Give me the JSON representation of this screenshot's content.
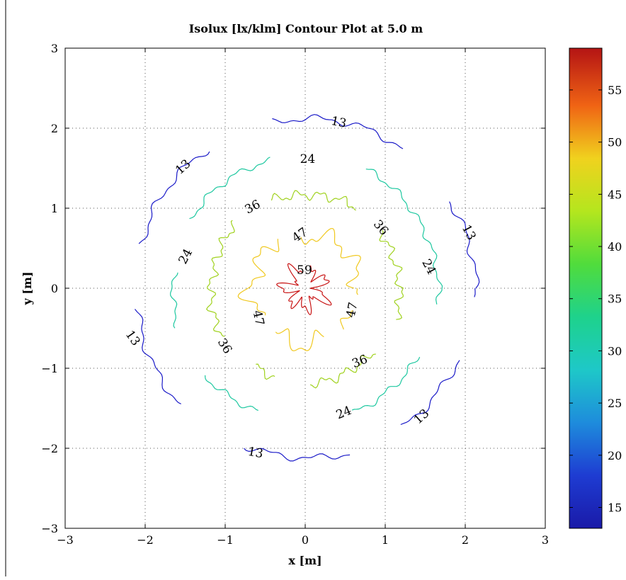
{
  "chart_data": {
    "type": "contour",
    "title": "Isolux [lx/klm] Contour Plot at 5.0 m",
    "xlabel": "x [m]",
    "ylabel": "y [m]",
    "xlim": [
      -3,
      3
    ],
    "ylim": [
      -3,
      3
    ],
    "xticks": [
      -3,
      -2,
      -1,
      0,
      1,
      2,
      3
    ],
    "yticks": [
      -3,
      -2,
      -1,
      0,
      1,
      2,
      3
    ],
    "xtick_labels": [
      "−3",
      "−2",
      "−1",
      "0",
      "1",
      "2",
      "3"
    ],
    "ytick_labels": [
      "−3",
      "−2",
      "−1",
      "0",
      "1",
      "2",
      "3"
    ],
    "grid": true,
    "colormap": "jet",
    "colorbar": {
      "range": [
        13,
        59
      ],
      "ticks": [
        15,
        20,
        25,
        30,
        35,
        40,
        45,
        50,
        55
      ],
      "tick_labels": [
        "15",
        "20",
        "25",
        "30",
        "35",
        "40",
        "45",
        "50",
        "55"
      ],
      "location": "right"
    },
    "levels": [
      {
        "value": 13,
        "label": "13",
        "color": "#1a1ac8",
        "radius": 2.12,
        "amp": 0.035,
        "freq": 22,
        "gaps": [
          [
            32,
            54
          ],
          [
            102,
            124
          ],
          [
            166,
            186
          ],
          [
            224,
            248
          ],
          [
            286,
            304
          ],
          [
            336,
            356
          ]
        ]
      },
      {
        "value": 24,
        "label": "24",
        "color": "#1ec8a0",
        "radius": 1.66,
        "amp": 0.03,
        "freq": 24,
        "gaps": [
          [
            64,
            104
          ],
          [
            150,
            172
          ],
          [
            198,
            220
          ],
          [
            250,
            290
          ],
          [
            330,
            352
          ]
        ]
      },
      {
        "value": 36,
        "label": "36",
        "color": "#a0d21e",
        "radius": 1.18,
        "amp": 0.045,
        "freq": 26,
        "gaps": [
          [
            38,
            56
          ],
          [
            112,
            136
          ],
          [
            212,
            236
          ],
          [
            252,
            272
          ],
          [
            318,
            340
          ]
        ]
      },
      {
        "value": 47,
        "label": "47",
        "color": "#f0c81e",
        "radius": 0.68,
        "amp": 0.09,
        "freq": 9,
        "gaps": [
          [
            96,
            118
          ],
          [
            215,
            235
          ],
          [
            292,
            312
          ],
          [
            336,
            352
          ]
        ]
      },
      {
        "value": 59,
        "label": "59",
        "color": "#c81414",
        "radius": 0.22,
        "amp": 0.09,
        "freq": 7,
        "gaps": [
          [
            78,
            100
          ]
        ]
      }
    ],
    "contour_labels": [
      {
        "text": "13",
        "x": 0.42,
        "y": 2.08,
        "rotate": 12
      },
      {
        "text": "13",
        "x": -1.53,
        "y": 1.52,
        "rotate": -42
      },
      {
        "text": "13",
        "x": 2.05,
        "y": 0.7,
        "rotate": 62
      },
      {
        "text": "13",
        "x": -2.15,
        "y": -0.62,
        "rotate": 55
      },
      {
        "text": "13",
        "x": 1.45,
        "y": -1.6,
        "rotate": -42
      },
      {
        "text": "13",
        "x": -0.62,
        "y": -2.05,
        "rotate": 10
      },
      {
        "text": "24",
        "x": 0.03,
        "y": 1.62,
        "rotate": 0
      },
      {
        "text": "24",
        "x": -1.5,
        "y": 0.4,
        "rotate": -62
      },
      {
        "text": "24",
        "x": 1.55,
        "y": 0.27,
        "rotate": 62
      },
      {
        "text": "24",
        "x": 0.48,
        "y": -1.55,
        "rotate": -22
      },
      {
        "text": "36",
        "x": -0.66,
        "y": 1.02,
        "rotate": -28
      },
      {
        "text": "36",
        "x": 0.95,
        "y": 0.76,
        "rotate": 50
      },
      {
        "text": "36",
        "x": -1.0,
        "y": -0.72,
        "rotate": 58
      },
      {
        "text": "36",
        "x": 0.68,
        "y": -0.91,
        "rotate": -22
      },
      {
        "text": "47",
        "x": -0.07,
        "y": 0.67,
        "rotate": -35
      },
      {
        "text": "47",
        "x": -0.58,
        "y": -0.37,
        "rotate": 78
      },
      {
        "text": "47",
        "x": 0.58,
        "y": -0.27,
        "rotate": -78
      },
      {
        "text": "59",
        "x": -0.01,
        "y": 0.23,
        "rotate": 0
      }
    ]
  }
}
